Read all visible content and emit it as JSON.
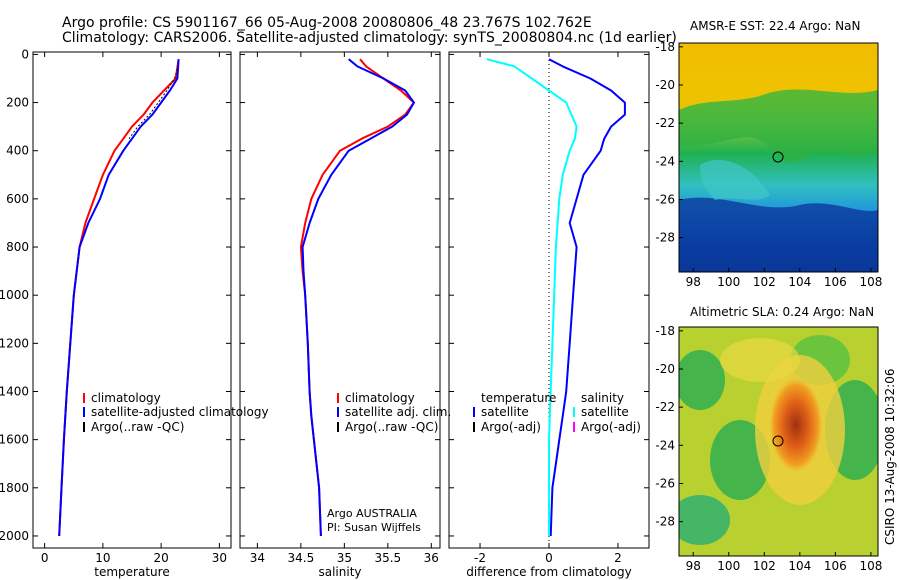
{
  "header": {
    "line1": "Argo profile: CS 5901167_66 05-Aug-2008 20080806_48 23.767S 102.762E",
    "line2": "Climatology: CARS2006. Satellite-adjusted climatology: synTS_20080804.nc (1d earlier)"
  },
  "side_stamp": "CSIRO 13-Aug-2008 10:32:06",
  "colors": {
    "red": "#ff0000",
    "blue": "#0000ff",
    "black": "#000000",
    "cyan": "#00ffff",
    "magenta": "#ff00ff"
  },
  "chart_data": [
    {
      "id": "temperature",
      "type": "line",
      "xlabel": "temperature",
      "ylabel": "",
      "xlim": [
        -2,
        32
      ],
      "ylim": [
        2050,
        -10
      ],
      "xticks": [
        0,
        10,
        20,
        30
      ],
      "yticks": [
        0,
        200,
        400,
        600,
        800,
        1000,
        1200,
        1400,
        1600,
        1800,
        2000
      ],
      "legend": {
        "placement": "lower-middle",
        "entries": [
          "climatology",
          "satellite-adjusted climatology",
          "Argo(..raw -QC)"
        ]
      },
      "series": [
        {
          "name": "climatology",
          "color": "red",
          "x": [
            23,
            22.5,
            20.5,
            18.5,
            17,
            15,
            13.5,
            12,
            10,
            8.5,
            7,
            6,
            5,
            4.4,
            3.8,
            3.3,
            2.9,
            2.5
          ],
          "y": [
            20,
            100,
            150,
            200,
            250,
            300,
            350,
            400,
            500,
            600,
            700,
            800,
            1000,
            1200,
            1400,
            1600,
            1800,
            2000
          ]
        },
        {
          "name": "satellite-adjusted climatology",
          "color": "blue",
          "x": [
            23,
            22.8,
            21.5,
            20,
            18.5,
            16.5,
            15,
            13.5,
            11,
            9.5,
            7.5,
            6,
            5,
            4.4,
            3.8,
            3.3,
            2.9,
            2.5
          ],
          "y": [
            20,
            100,
            150,
            200,
            250,
            300,
            350,
            400,
            500,
            600,
            700,
            800,
            1000,
            1200,
            1400,
            1600,
            1800,
            2000
          ]
        },
        {
          "name": "Argo(..raw -QC)",
          "color": "black",
          "x": [
            22.8,
            22.3,
            21,
            19.5,
            18,
            16,
            14.5
          ],
          "y": [
            60,
            100,
            150,
            200,
            250,
            300,
            350
          ]
        }
      ]
    },
    {
      "id": "salinity",
      "type": "line",
      "xlabel": "salinity",
      "ylabel": "",
      "xlim": [
        33.8,
        36.1
      ],
      "ylim": [
        2050,
        -10
      ],
      "xticks": [
        34,
        34.5,
        35,
        35.5,
        36
      ],
      "yticks": [
        0,
        200,
        400,
        600,
        800,
        1000,
        1200,
        1400,
        1600,
        1800,
        2000
      ],
      "legend": {
        "placement": "lower-middle",
        "entries": [
          "climatology",
          "satellite adj. clim.",
          "Argo(..raw -QC)"
        ]
      },
      "annotations": [
        "Argo AUSTRALIA",
        "PI: Susan Wijffels"
      ],
      "series": [
        {
          "name": "climatology",
          "color": "red",
          "x": [
            35.18,
            35.25,
            35.45,
            35.65,
            35.8,
            35.7,
            35.5,
            35.2,
            34.95,
            34.75,
            34.62,
            34.55,
            34.5,
            34.52,
            34.55,
            34.58,
            34.6,
            34.62,
            34.65,
            34.68,
            34.71,
            34.73
          ],
          "y": [
            20,
            50,
            100,
            150,
            200,
            250,
            300,
            350,
            400,
            500,
            600,
            700,
            800,
            900,
            1000,
            1200,
            1400,
            1500,
            1600,
            1700,
            1800,
            2000
          ]
        },
        {
          "name": "satellite adj. clim.",
          "color": "blue",
          "x": [
            35.05,
            35.15,
            35.45,
            35.7,
            35.8,
            35.72,
            35.55,
            35.3,
            35.05,
            34.85,
            34.7,
            34.6,
            34.52,
            34.53,
            34.55,
            34.58,
            34.6,
            34.62,
            34.65,
            34.68,
            34.71,
            34.73
          ],
          "y": [
            20,
            50,
            100,
            150,
            200,
            250,
            300,
            350,
            400,
            500,
            600,
            700,
            800,
            900,
            1000,
            1200,
            1400,
            1500,
            1600,
            1700,
            1800,
            2000
          ]
        }
      ]
    },
    {
      "id": "difference",
      "type": "line",
      "xlabel": "difference from climatology",
      "ylabel": "",
      "xlim": [
        -2.9,
        2.9
      ],
      "ylim": [
        2050,
        -10
      ],
      "xticks": [
        -2,
        0,
        2
      ],
      "yticks": [
        0,
        200,
        400,
        600,
        800,
        1000,
        1200,
        1400,
        1600,
        1800,
        2000
      ],
      "legend": {
        "placement": "lower-middle",
        "headers": [
          "temperature",
          "salinity"
        ],
        "entries": [
          "satellite",
          "Argo(-adj)",
          "satellite",
          "Argo(-adj)"
        ]
      },
      "series": [
        {
          "name": "satellite",
          "color": "blue",
          "x": [
            0,
            0.4,
            1.2,
            1.8,
            2.2,
            2.2,
            1.8,
            1.6,
            1.5,
            1.0,
            0.8,
            0.6,
            0.8,
            0.7,
            0.6,
            0.5,
            0.4,
            0.3,
            0.2,
            0.1,
            0.05
          ],
          "y": [
            20,
            50,
            100,
            150,
            200,
            250,
            300,
            350,
            400,
            500,
            600,
            700,
            800,
            1000,
            1200,
            1400,
            1500,
            1600,
            1700,
            1800,
            2000
          ]
        },
        {
          "name": "satellite",
          "color": "cyan",
          "x": [
            -1.8,
            -1.0,
            -0.5,
            0.0,
            0.5,
            0.8,
            0.75,
            0.6,
            0.4,
            0.3,
            0.2,
            0.15,
            0.1,
            0.05,
            0.0,
            0.0,
            0.0
          ],
          "y": [
            20,
            50,
            100,
            150,
            200,
            300,
            350,
            400,
            500,
            600,
            800,
            1000,
            1200,
            1400,
            1600,
            1800,
            2000
          ]
        }
      ]
    }
  ],
  "maps": [
    {
      "id": "sst",
      "title": "AMSR-E SST: 22.4 Argo: NaN",
      "xticks": [
        98,
        100,
        102,
        104,
        106,
        108
      ],
      "yticks": [
        -18,
        -20,
        -22,
        -24,
        -26,
        -28
      ],
      "xlim": [
        97.2,
        108.4
      ],
      "ylim": [
        -17.8,
        -29.8
      ],
      "argo_position": [
        102.76,
        -23.77
      ]
    },
    {
      "id": "sla",
      "title": "Altimetric SLA: 0.24 Argo: NaN",
      "xticks": [
        98,
        100,
        102,
        104,
        106,
        108
      ],
      "yticks": [
        -18,
        -20,
        -22,
        -24,
        -26,
        -28
      ],
      "xlim": [
        97.2,
        108.4
      ],
      "ylim": [
        -17.8,
        -29.8
      ],
      "argo_position": [
        102.76,
        -23.77
      ]
    }
  ]
}
